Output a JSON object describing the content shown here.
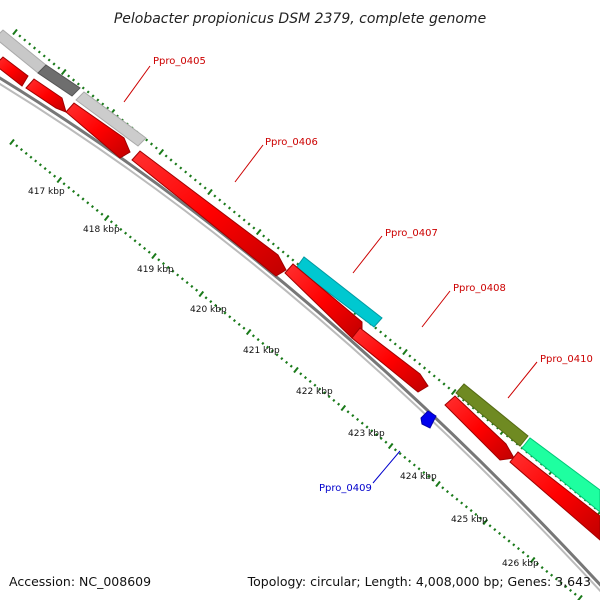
{
  "title": "Pelobacter propionicus DSM 2379, complete genome",
  "footer": {
    "accession": "Accession: NC_008609",
    "summary": "Topology: circular; Length: 4,008,000 bp; Genes: 3,643"
  },
  "colors": {
    "tick": "#1a7a1a",
    "backbone": "#888888",
    "forward_label": "#cc0000",
    "reverse_label": "#0000cc"
  },
  "ruler_labels": [
    "417 kbp",
    "418 kbp",
    "419 kbp",
    "420 kbp",
    "421 kbp",
    "422 kbp",
    "423 kbp",
    "424 kbp",
    "425 kbp",
    "426 kbp"
  ],
  "genes": [
    {
      "name": "Ppro_0405",
      "color": "#cc0000"
    },
    {
      "name": "Ppro_0406",
      "color": "#cc0000"
    },
    {
      "name": "Ppro_0407",
      "color": "#cc0000"
    },
    {
      "name": "Ppro_0408",
      "color": "#cc0000"
    },
    {
      "name": "Ppro_0409",
      "color": "#0000cc"
    },
    {
      "name": "Ppro_0410",
      "color": "#cc0000"
    }
  ]
}
